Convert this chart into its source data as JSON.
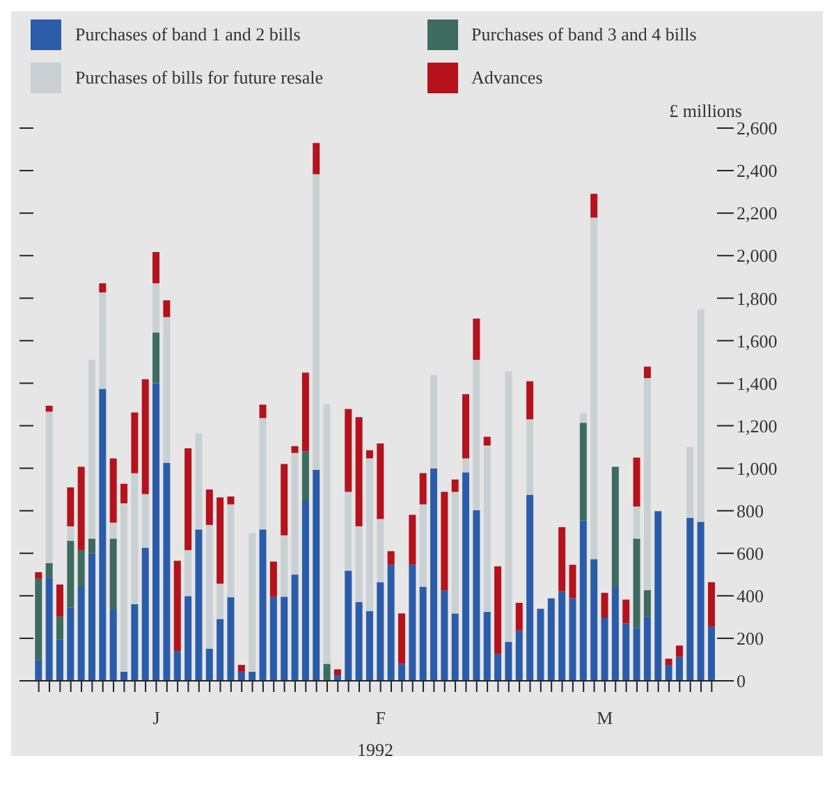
{
  "chart_data": {
    "type": "bar",
    "stacked": true,
    "xlabel": "1992",
    "ylabel": "£ millions",
    "categories": [
      null,
      null,
      null,
      null,
      null,
      null,
      null,
      null,
      null,
      null,
      null,
      "J",
      null,
      null,
      null,
      null,
      null,
      null,
      null,
      null,
      null,
      null,
      null,
      null,
      null,
      null,
      null,
      null,
      null,
      null,
      null,
      null,
      "F",
      null,
      null,
      null,
      null,
      null,
      null,
      null,
      null,
      null,
      null,
      null,
      null,
      null,
      null,
      null,
      null,
      null,
      null,
      null,
      null,
      "M",
      null,
      null,
      null,
      null,
      null,
      null,
      null,
      null,
      null,
      null
    ],
    "series": [
      {
        "name": "Purchases of band 1 and 2 bills",
        "color": "#2a5caa",
        "values": [
          97,
          485,
          194,
          345,
          442,
          600,
          1374,
          334,
          43,
          360,
          626,
          1400,
          1025,
          140,
          399,
          712,
          151,
          291,
          393,
          43,
          43,
          712,
          395,
          395,
          500,
          848,
          992,
          null,
          26,
          518,
          371,
          328,
          464,
          546,
          80,
          546,
          442,
          999,
          425,
          317,
          981,
          802,
          324,
          125,
          183,
          237,
          874,
          339,
          388,
          421,
          388,
          755,
          572,
          298,
          442,
          270,
          248,
          302,
          798,
          75,
          114,
          766,
          748,
          255
        ]
      },
      {
        "name": "Purchases of band 3 and 4 bills",
        "color": "#3d6b60",
        "values": [
          382,
          69,
          108,
          313,
          173,
          69,
          null,
          335,
          null,
          null,
          null,
          239,
          null,
          null,
          null,
          null,
          null,
          null,
          null,
          null,
          null,
          null,
          null,
          null,
          null,
          231,
          null,
          80,
          null,
          null,
          null,
          null,
          null,
          null,
          null,
          null,
          null,
          null,
          null,
          null,
          null,
          null,
          null,
          null,
          null,
          null,
          null,
          null,
          null,
          null,
          null,
          459,
          null,
          null,
          565,
          null,
          421,
          125,
          null,
          null,
          null,
          null,
          null,
          null
        ]
      },
      {
        "name": "Purchases of bills for future resale",
        "color": "#c9d0d4",
        "values": [
          null,
          712,
          null,
          69,
          null,
          841,
          453,
          75,
          792,
          617,
          252,
          231,
          686,
          null,
          216,
          453,
          582,
          166,
          437,
          null,
          652,
          524,
          null,
          289,
          572,
          null,
          1391,
          1221,
          null,
          371,
          356,
          718,
          297,
          null,
          null,
          null,
          388,
          440,
          null,
          572,
          65,
          708,
          783,
          null,
          1273,
          null,
          356,
          null,
          null,
          null,
          null,
          44,
          1607,
          null,
          null,
          null,
          151,
          997,
          null,
          null,
          null,
          334,
          999,
          null
        ]
      },
      {
        "name": "Advances",
        "color": "#b5121b",
        "values": [
          32,
          28,
          151,
          183,
          392,
          null,
          43,
          302,
          92,
          285,
          541,
          147,
          79,
          425,
          479,
          null,
          167,
          406,
          37,
          32,
          null,
          63,
          166,
          336,
          32,
          371,
          147,
          null,
          28,
          390,
          513,
          39,
          356,
          64,
          237,
          235,
          147,
          null,
          464,
          58,
          302,
          194,
          41,
          414,
          null,
          130,
          179,
          null,
          null,
          302,
          158,
          null,
          112,
          116,
          null,
          112,
          230,
          54,
          null,
          29,
          52,
          null,
          null,
          209
        ]
      }
    ],
    "ylim": [
      0,
      2600
    ],
    "yticks": [
      0,
      200,
      400,
      600,
      800,
      {
        "value": 1000,
        "label": "1,000"
      },
      {
        "value": 1200,
        "label": "1,200"
      },
      {
        "value": 1400,
        "label": "1,400"
      },
      {
        "value": 1600,
        "label": "1,600"
      },
      {
        "value": 1800,
        "label": "1,800"
      },
      {
        "value": 2000,
        "label": "2,000"
      },
      {
        "value": 2200,
        "label": "2,200"
      },
      {
        "value": 2400,
        "label": "2,400"
      },
      {
        "value": 2600,
        "label": "2,600"
      }
    ],
    "legend": "top",
    "grid": false
  }
}
